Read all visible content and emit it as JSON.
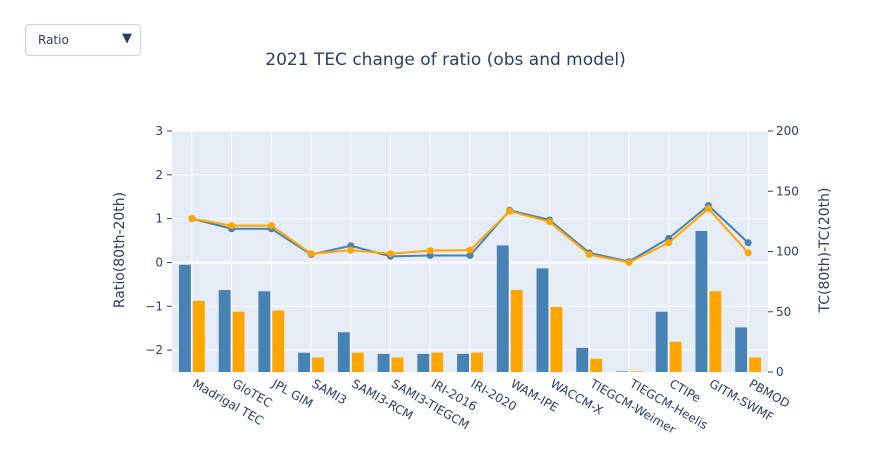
{
  "dropdown": {
    "selected": "Ratio",
    "arrow_icon": "triangle-down-icon"
  },
  "colors": {
    "obs": "#4682b4",
    "model": "#ffa500",
    "plot_bg": "#e5ecf6",
    "grid": "#ffffff",
    "text": "#2a3f5f"
  },
  "chart_data": {
    "type": "bar",
    "title": "2021 TEC change of ratio (obs and model)",
    "categories": [
      "Madrigal TEC",
      "GloTEC",
      "JPL GIM",
      "SAMI3",
      "SAMI3-RCM",
      "SAMI3-TIEGCM",
      "IRI-2016",
      "IRI-2020",
      "WAM-IPE",
      "WACCM-X",
      "TIEGCM-Weimer",
      "TIEGCM-Heelis",
      "CTIPe",
      "GITM-SWMF",
      "PBMOD"
    ],
    "ylabel": "Ratio(80th-20th)",
    "y2label": "TC(80th)-TC(20th)",
    "ylim": [
      -2.5,
      3
    ],
    "y2lim": [
      0,
      200
    ],
    "yticks": [
      3,
      2,
      1,
      0,
      -1,
      -2
    ],
    "ytick_labels": [
      "3",
      "2",
      "1",
      "0",
      "−1",
      "−2"
    ],
    "y2ticks": [
      200,
      150,
      100,
      50,
      0
    ],
    "y2tick_labels": [
      "200",
      "150",
      "100",
      "50",
      "0"
    ],
    "grid": true,
    "series": [
      {
        "kind": "bar",
        "axis": "y2",
        "color_key": "obs",
        "values": [
          89,
          68,
          67,
          16,
          33,
          15,
          15,
          15,
          105,
          86,
          20,
          0.5,
          50,
          117,
          37
        ]
      },
      {
        "kind": "bar",
        "axis": "y2",
        "color_key": "model",
        "values": [
          59,
          50,
          51,
          12,
          16,
          12,
          16,
          16,
          68,
          54,
          11,
          0.5,
          25,
          67,
          12
        ]
      },
      {
        "kind": "line",
        "axis": "y",
        "color_key": "obs",
        "values": [
          1.0,
          0.77,
          0.77,
          0.18,
          0.38,
          0.14,
          0.16,
          0.16,
          1.19,
          0.97,
          0.22,
          0.02,
          0.55,
          1.3,
          0.45
        ]
      },
      {
        "kind": "line",
        "axis": "y",
        "color_key": "model",
        "values": [
          1.0,
          0.84,
          0.84,
          0.2,
          0.28,
          0.2,
          0.27,
          0.28,
          1.17,
          0.93,
          0.18,
          0.0,
          0.45,
          1.23,
          0.22
        ]
      }
    ]
  }
}
